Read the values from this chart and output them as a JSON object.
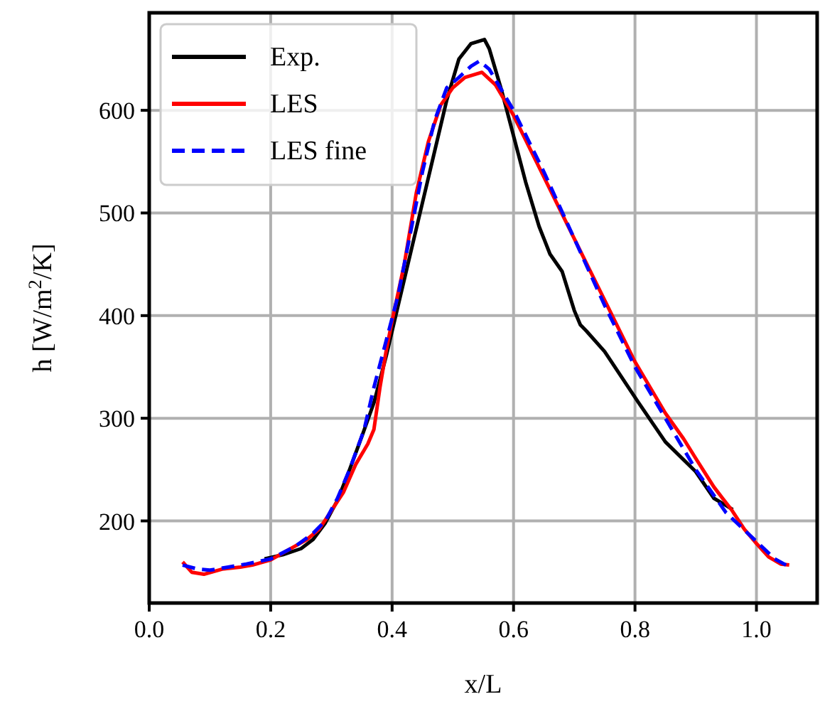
{
  "chart_data": {
    "type": "line",
    "xlabel": "x/L",
    "ylabel": "h [W/m$^{2}$/K]",
    "xlim": [
      0,
      1.1
    ],
    "ylim": [
      120,
      695
    ],
    "xticks": [
      {
        "value": 0,
        "label": "0.0"
      },
      {
        "value": 0.2,
        "label": "0.2"
      },
      {
        "value": 0.4,
        "label": "0.4"
      },
      {
        "value": 0.6,
        "label": "0.6"
      },
      {
        "value": 0.8,
        "label": "0.8"
      },
      {
        "value": 1,
        "label": "1.0"
      }
    ],
    "yticks": [
      200,
      300,
      400,
      500,
      600
    ],
    "grid": true,
    "legend": "top left",
    "series": [
      {
        "name": "Exp.",
        "color": "#000000",
        "line_style": "solid",
        "x": [
          0.19,
          0.22,
          0.25,
          0.27,
          0.29,
          0.31,
          0.33,
          0.35,
          0.37,
          0.39,
          0.41,
          0.43,
          0.45,
          0.47,
          0.49,
          0.51,
          0.53,
          0.552,
          0.56,
          0.58,
          0.6,
          0.62,
          0.642,
          0.66,
          0.68,
          0.7,
          0.71,
          0.72,
          0.75,
          0.805,
          0.85,
          0.9,
          0.93,
          0.95,
          0.961
        ],
        "values": [
          163,
          167,
          173,
          182,
          198,
          220,
          250,
          282,
          315,
          360,
          410,
          460,
          510,
          560,
          610,
          650,
          665,
          669,
          660,
          620,
          575,
          530,
          487,
          460,
          443,
          405,
          391,
          385,
          365,
          316,
          277,
          248,
          222,
          215,
          211
        ]
      },
      {
        "name": "LES",
        "color": "#ff0000",
        "line_style": "solid",
        "x": [
          0.055,
          0.07,
          0.09,
          0.12,
          0.15,
          0.17,
          0.2,
          0.23,
          0.26,
          0.28,
          0.3,
          0.32,
          0.34,
          0.36,
          0.37,
          0.38,
          0.39,
          0.4,
          0.42,
          0.44,
          0.46,
          0.48,
          0.5,
          0.52,
          0.548,
          0.57,
          0.6,
          0.65,
          0.7,
          0.75,
          0.8,
          0.85,
          0.88,
          0.9,
          0.93,
          0.96,
          0.98,
          1.0,
          1.02,
          1.04,
          1.054
        ],
        "values": [
          160,
          150,
          148,
          153,
          155,
          157,
          162,
          172,
          182,
          192,
          210,
          228,
          255,
          275,
          289,
          330,
          365,
          395,
          450,
          520,
          570,
          605,
          622,
          632,
          637,
          625,
          595,
          535,
          475,
          415,
          355,
          305,
          280,
          261,
          233,
          210,
          192,
          178,
          165,
          158,
          157
        ]
      },
      {
        "name": "LES fine",
        "color": "#0000ff",
        "line_style": "dashed",
        "x": [
          0.055,
          0.08,
          0.1,
          0.13,
          0.16,
          0.2,
          0.24,
          0.27,
          0.29,
          0.31,
          0.33,
          0.354,
          0.37,
          0.39,
          0.41,
          0.43,
          0.45,
          0.47,
          0.49,
          0.51,
          0.53,
          0.544,
          0.56,
          0.6,
          0.65,
          0.7,
          0.75,
          0.8,
          0.85,
          0.9,
          0.95,
          1.0,
          1.03,
          1.055
        ],
        "values": [
          157,
          153,
          152,
          155,
          158,
          163,
          175,
          188,
          200,
          222,
          250,
          289,
          330,
          375,
          420,
          480,
          540,
          590,
          622,
          632,
          643,
          648,
          640,
          600,
          540,
          475,
          410,
          350,
          300,
          250,
          208,
          180,
          163,
          155
        ]
      }
    ]
  }
}
